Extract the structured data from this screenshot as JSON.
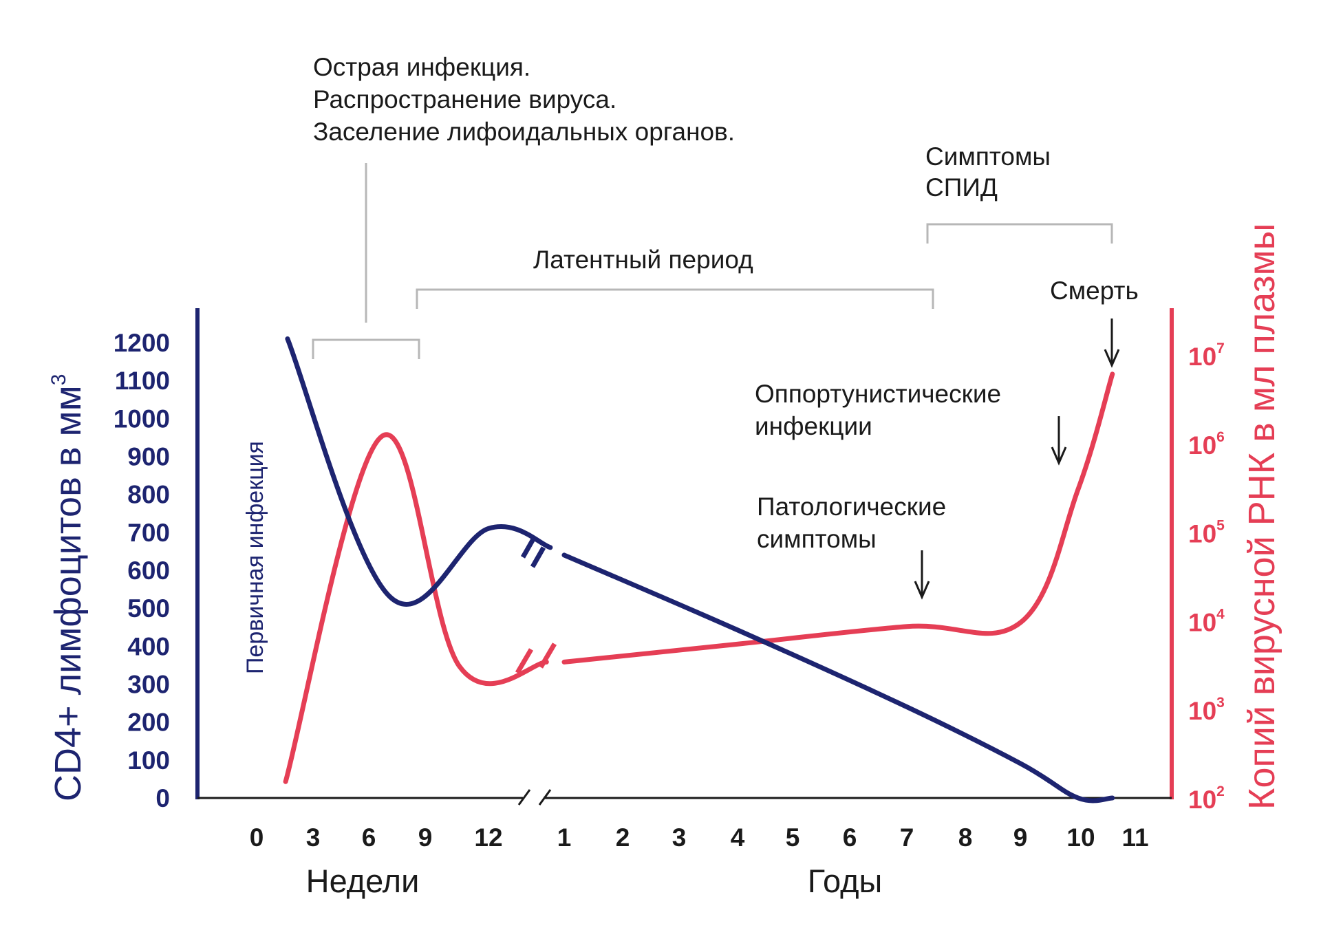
{
  "chart_data": {
    "type": "line",
    "y_left": {
      "label": "CD4+ лимфоцитов в мм",
      "label_superscript": "3",
      "ticks": [
        "0",
        "100",
        "200",
        "300",
        "400",
        "500",
        "600",
        "700",
        "800",
        "900",
        "1000",
        "1100",
        "1200"
      ],
      "range": [
        0,
        1200
      ],
      "color": "#1d2470"
    },
    "y_right": {
      "label": "Копий вирусной РНК в мл плазмы",
      "scale": "log",
      "ticks": [
        {
          "base": "10",
          "exp": "2"
        },
        {
          "base": "10",
          "exp": "3"
        },
        {
          "base": "10",
          "exp": "4"
        },
        {
          "base": "10",
          "exp": "5"
        },
        {
          "base": "10",
          "exp": "6"
        },
        {
          "base": "10",
          "exp": "7"
        }
      ],
      "range_log10": [
        2,
        7
      ],
      "color": "#e53e55"
    },
    "x_axis": {
      "segments": [
        {
          "label": "Недели",
          "ticks": [
            "0",
            "3",
            "6",
            "9",
            "12"
          ]
        },
        {
          "label": "Годы",
          "ticks": [
            "1",
            "2",
            "3",
            "4",
            "5",
            "6",
            "7",
            "8",
            "9",
            "10",
            "11"
          ]
        }
      ],
      "break_between_segments": true
    },
    "series": [
      {
        "key": "cd4",
        "axis": "left",
        "color": "#1d2470",
        "segments": [
          [
            {
              "x": "w1.6",
              "y": 1210
            },
            {
              "x": "w6.9",
              "y": 530
            },
            {
              "x": "w12",
              "y": 710
            },
            {
              "x": "w15.2",
              "y": 660
            }
          ],
          [
            {
              "x": "y1",
              "y": 640
            },
            {
              "x": "y4",
              "y": 445
            },
            {
              "x": "y7",
              "y": 240
            },
            {
              "x": "y9",
              "y": 90
            },
            {
              "x": "y10",
              "y": 0
            },
            {
              "x": "y10.6",
              "y": 0
            }
          ]
        ]
      },
      {
        "key": "viral_rna",
        "axis": "right",
        "color": "#e53e55",
        "segments": [
          [
            {
              "x": "w1.5",
              "y_log10": 2.2
            },
            {
              "x": "w6.5",
              "y_log10": 6.1
            },
            {
              "x": "w10.5",
              "y_log10": 3.5
            },
            {
              "x": "w15",
              "y_log10": 3.55
            }
          ],
          [
            {
              "x": "y1",
              "y_log10": 3.55
            },
            {
              "x": "y4",
              "y_log10": 3.75
            },
            {
              "x": "y7",
              "y_log10": 3.95
            },
            {
              "x": "y9",
              "y_log10": 4.0
            },
            {
              "x": "y10",
              "y_log10": 5.5
            },
            {
              "x": "y10.6",
              "y_log10": 6.8
            }
          ]
        ]
      }
    ],
    "annotations": {
      "primary_infection": "Первичная инфекция",
      "acute": [
        "Острая инфекция.",
        "Распространение вируса.",
        "Заселение лифоидальных органов."
      ],
      "latent": "Латентный период",
      "aids_symptoms": [
        "Симптомы",
        "СПИД"
      ],
      "death": "Смерть",
      "opportunistic": [
        "Оппортунистические",
        "инфекции"
      ],
      "pathologic": [
        "Патологические",
        "симптомы"
      ]
    }
  }
}
